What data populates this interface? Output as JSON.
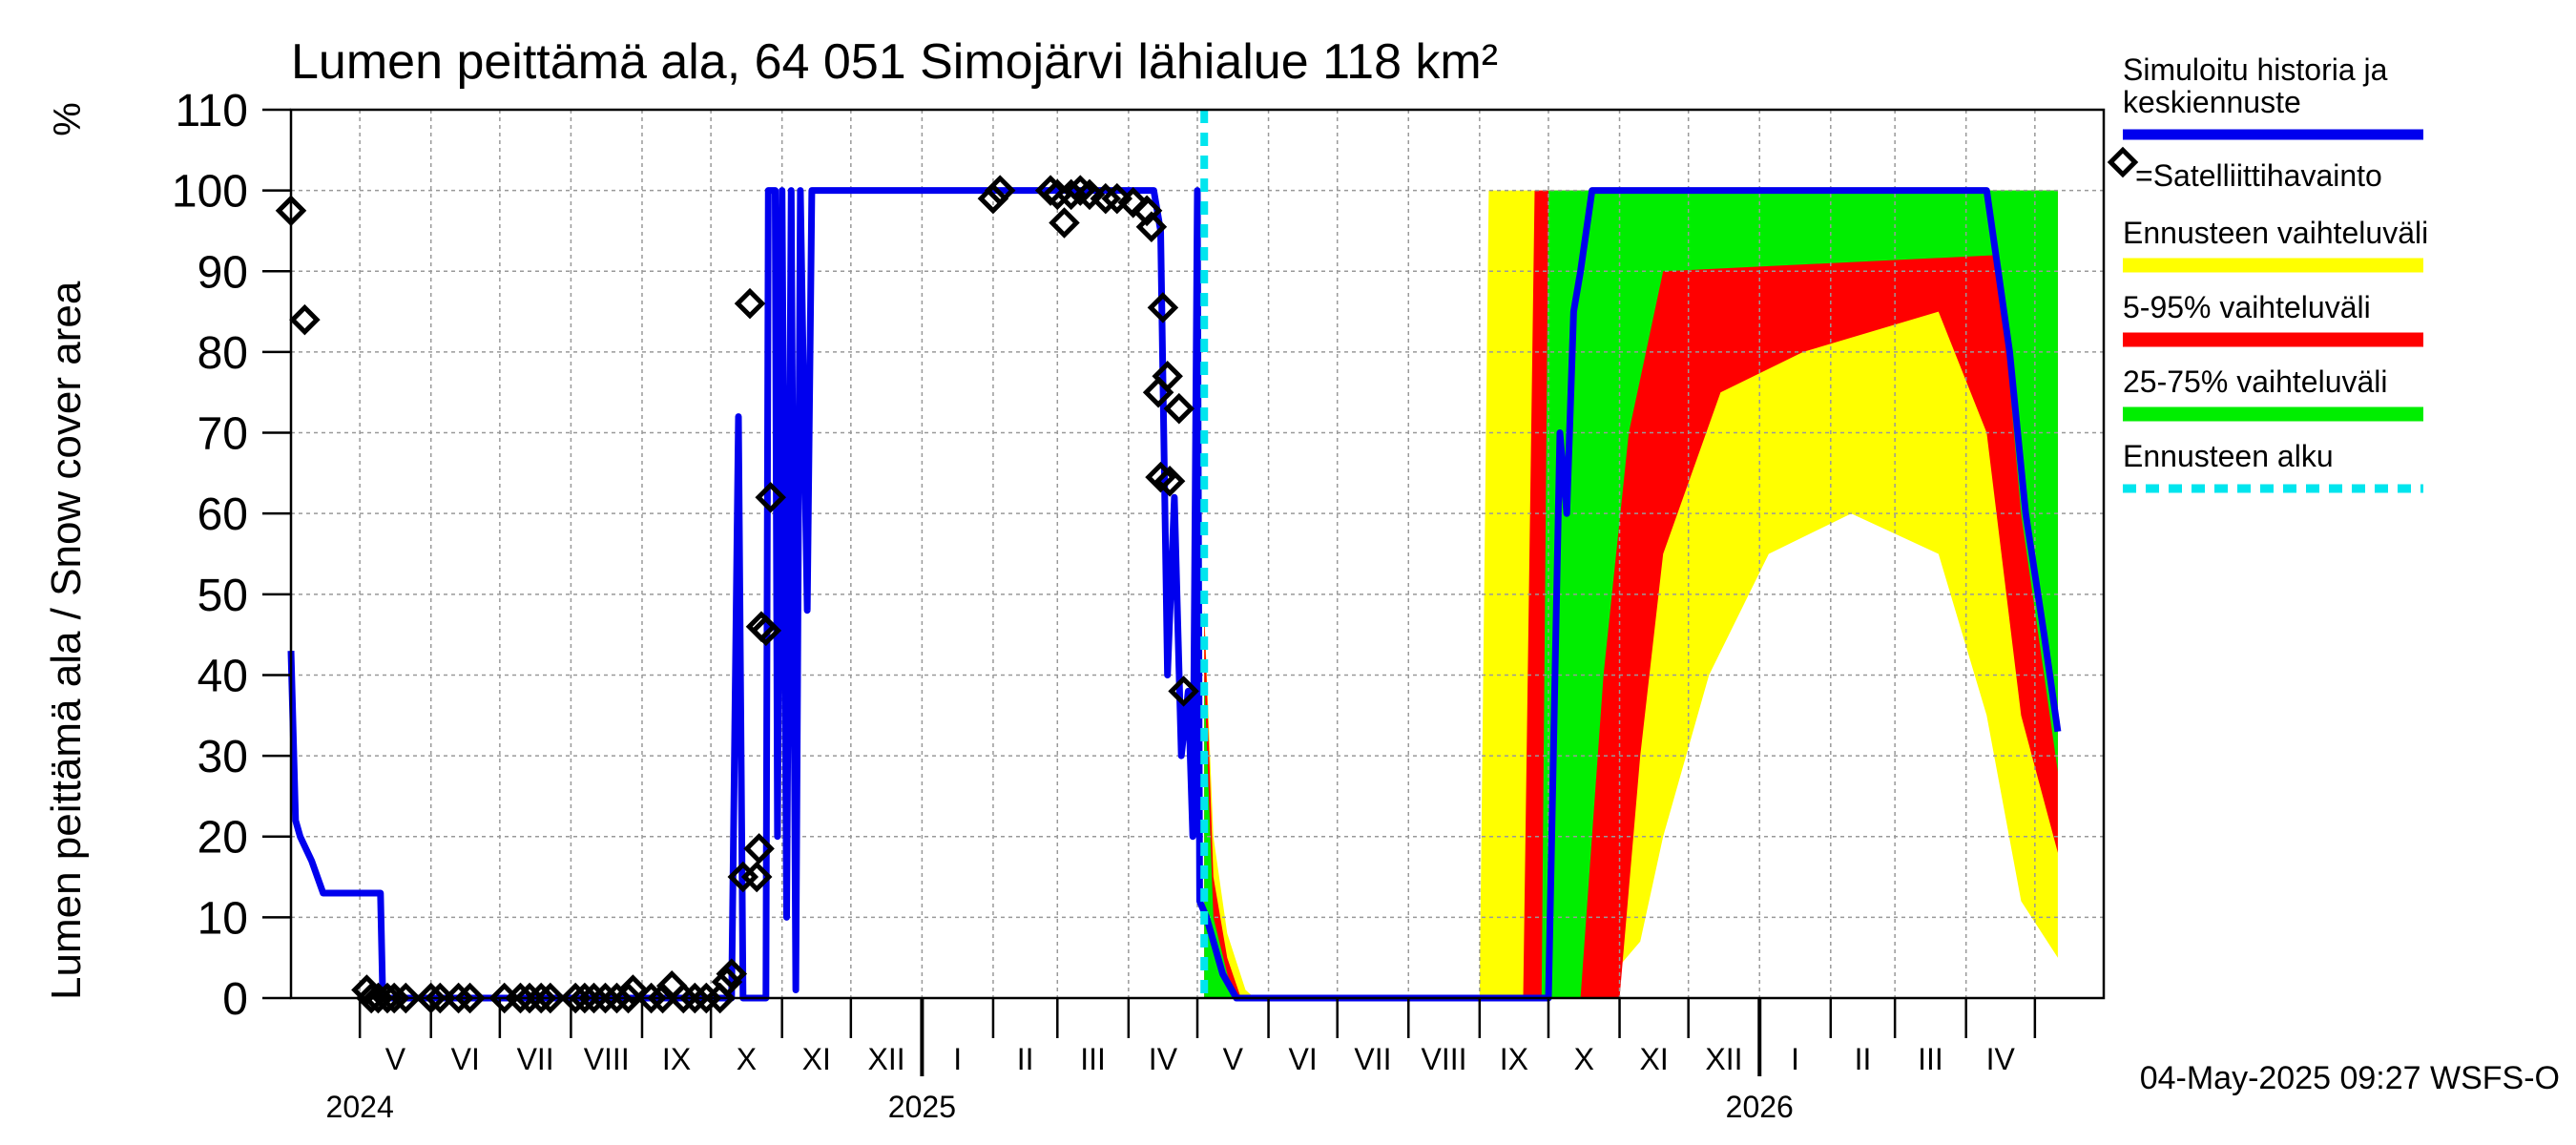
{
  "chart_data": {
    "type": "line",
    "title": "Lumen peittämä ala, 64 051 Simojärvi lähialue 118 km²",
    "ylabel": "Lumen peittämä ala / Snow cover area",
    "yunit": "%",
    "ylim": [
      0,
      110
    ],
    "yticks": [
      0,
      10,
      20,
      30,
      40,
      50,
      60,
      70,
      80,
      90,
      100,
      110
    ],
    "xlim": [
      "2024-04-01",
      "2026-05-31"
    ],
    "forecast_start": "2025-05-04",
    "month_labels": [
      {
        "date": "2024-05-01",
        "label": "V"
      },
      {
        "date": "2024-06-01",
        "label": "VI"
      },
      {
        "date": "2024-07-01",
        "label": "VII"
      },
      {
        "date": "2024-08-01",
        "label": "VIII"
      },
      {
        "date": "2024-09-01",
        "label": "IX"
      },
      {
        "date": "2024-10-01",
        "label": "X"
      },
      {
        "date": "2024-11-01",
        "label": "XI"
      },
      {
        "date": "2024-12-01",
        "label": "XII"
      },
      {
        "date": "2025-01-01",
        "label": "I"
      },
      {
        "date": "2025-02-01",
        "label": "II"
      },
      {
        "date": "2025-03-01",
        "label": "III"
      },
      {
        "date": "2025-04-01",
        "label": "IV"
      },
      {
        "date": "2025-05-01",
        "label": "V"
      },
      {
        "date": "2025-06-01",
        "label": "VI"
      },
      {
        "date": "2025-07-01",
        "label": "VII"
      },
      {
        "date": "2025-08-01",
        "label": "VIII"
      },
      {
        "date": "2025-09-01",
        "label": "IX"
      },
      {
        "date": "2025-10-01",
        "label": "X"
      },
      {
        "date": "2025-11-01",
        "label": "XI"
      },
      {
        "date": "2025-12-01",
        "label": "XII"
      },
      {
        "date": "2026-01-01",
        "label": "I"
      },
      {
        "date": "2026-02-01",
        "label": "II"
      },
      {
        "date": "2026-03-01",
        "label": "III"
      },
      {
        "date": "2026-04-01",
        "label": "IV"
      }
    ],
    "year_labels": [
      {
        "date": "2024-05-01",
        "label": "2024"
      },
      {
        "date": "2025-01-01",
        "label": "2025"
      },
      {
        "date": "2026-01-01",
        "label": "2026"
      }
    ],
    "legend": {
      "simulated": "Simuloitu historia ja keskiennuste",
      "satellite": "=Satelliittihavainto",
      "range_full": "Ennusteen vaihteluväli",
      "range_5_95": "5-95% vaihteluväli",
      "range_25_75": "25-75% vaihteluväli",
      "forecast_start": "Ennusteen alku"
    },
    "colors": {
      "simulated": "#0000ee",
      "range_full": "#ffff00",
      "range_5_95": "#ff0000",
      "range_25_75": "#00ee00",
      "forecast_start": "#00e5ee",
      "satellite": "#000000"
    },
    "series_simulated": [
      [
        "2024-04-01",
        43
      ],
      [
        "2024-04-03",
        22
      ],
      [
        "2024-04-05",
        20
      ],
      [
        "2024-04-10",
        17
      ],
      [
        "2024-04-15",
        13
      ],
      [
        "2024-05-10",
        13
      ],
      [
        "2024-05-11",
        0
      ],
      [
        "2024-10-10",
        0
      ],
      [
        "2024-10-13",
        72
      ],
      [
        "2024-10-15",
        0
      ],
      [
        "2024-10-25",
        0
      ],
      [
        "2024-10-26",
        100
      ],
      [
        "2024-10-29",
        100
      ],
      [
        "2024-10-30",
        20
      ],
      [
        "2024-11-01",
        100
      ],
      [
        "2024-11-03",
        10
      ],
      [
        "2024-11-05",
        100
      ],
      [
        "2024-11-07",
        1
      ],
      [
        "2024-11-09",
        100
      ],
      [
        "2024-11-12",
        48
      ],
      [
        "2024-11-14",
        100
      ],
      [
        "2025-04-12",
        100
      ],
      [
        "2025-04-15",
        95
      ],
      [
        "2025-04-18",
        40
      ],
      [
        "2025-04-21",
        62
      ],
      [
        "2025-04-24",
        30
      ],
      [
        "2025-04-27",
        38
      ],
      [
        "2025-04-29",
        20
      ],
      [
        "2025-05-01",
        100
      ],
      [
        "2025-05-02",
        12
      ],
      [
        "2025-05-05",
        10
      ],
      [
        "2025-05-12",
        3
      ],
      [
        "2025-05-18",
        0
      ],
      [
        "2025-10-01",
        0
      ],
      [
        "2025-10-06",
        70
      ],
      [
        "2025-10-09",
        60
      ],
      [
        "2025-10-12",
        85
      ],
      [
        "2025-10-15",
        90
      ],
      [
        "2025-10-20",
        100
      ],
      [
        "2026-04-10",
        100
      ],
      [
        "2026-04-15",
        90
      ],
      [
        "2026-04-20",
        80
      ],
      [
        "2026-04-27",
        60
      ],
      [
        "2026-05-05",
        45
      ],
      [
        "2026-05-11",
        33
      ]
    ],
    "satellite_obs": [
      [
        "2024-04-01",
        97.5
      ],
      [
        "2024-04-07",
        84
      ],
      [
        "2024-05-04",
        1
      ],
      [
        "2024-05-06",
        0
      ],
      [
        "2024-05-09",
        0
      ],
      [
        "2024-05-13",
        0
      ],
      [
        "2024-05-16",
        0
      ],
      [
        "2024-05-21",
        0
      ],
      [
        "2024-06-01",
        0
      ],
      [
        "2024-06-05",
        0
      ],
      [
        "2024-06-13",
        0
      ],
      [
        "2024-06-18",
        0
      ],
      [
        "2024-07-03",
        0
      ],
      [
        "2024-07-10",
        0
      ],
      [
        "2024-07-14",
        0
      ],
      [
        "2024-07-19",
        0
      ],
      [
        "2024-07-23",
        0
      ],
      [
        "2024-08-03",
        0
      ],
      [
        "2024-08-07",
        0
      ],
      [
        "2024-08-11",
        0
      ],
      [
        "2024-08-16",
        0
      ],
      [
        "2024-08-21",
        0
      ],
      [
        "2024-08-26",
        0
      ],
      [
        "2024-08-28",
        1
      ],
      [
        "2024-09-05",
        0
      ],
      [
        "2024-09-10",
        0
      ],
      [
        "2024-09-14",
        1.5
      ],
      [
        "2024-09-19",
        0
      ],
      [
        "2024-09-24",
        0
      ],
      [
        "2024-09-29",
        0
      ],
      [
        "2024-10-05",
        0
      ],
      [
        "2024-10-08",
        2
      ],
      [
        "2024-10-10",
        3
      ],
      [
        "2024-10-15",
        15
      ],
      [
        "2024-10-18",
        86
      ],
      [
        "2024-10-21",
        15
      ],
      [
        "2024-10-22",
        18.5
      ],
      [
        "2024-10-23",
        46
      ],
      [
        "2024-10-25",
        45.5
      ],
      [
        "2024-10-27",
        62
      ],
      [
        "2025-02-01",
        99
      ],
      [
        "2025-02-04",
        100
      ],
      [
        "2025-02-26",
        100
      ],
      [
        "2025-03-01",
        99.5
      ],
      [
        "2025-03-04",
        96
      ],
      [
        "2025-03-07",
        99.5
      ],
      [
        "2025-03-11",
        100
      ],
      [
        "2025-03-15",
        99.5
      ],
      [
        "2025-03-22",
        99
      ],
      [
        "2025-03-27",
        99
      ],
      [
        "2025-04-03",
        98.5
      ],
      [
        "2025-04-09",
        97.5
      ],
      [
        "2025-04-11",
        95.5
      ],
      [
        "2025-04-14",
        75
      ],
      [
        "2025-04-15",
        64.5
      ],
      [
        "2025-04-16",
        85.5
      ],
      [
        "2025-04-18",
        77
      ],
      [
        "2025-04-19",
        64
      ],
      [
        "2025-04-23",
        73
      ],
      [
        "2025-04-25",
        38
      ]
    ],
    "band_full": [
      [
        "2025-05-04",
        0,
        48
      ],
      [
        "2025-05-08",
        0,
        20
      ],
      [
        "2025-05-14",
        0,
        8
      ],
      [
        "2025-05-22",
        0,
        1
      ],
      [
        "2025-05-26",
        0,
        0
      ],
      [
        "2025-09-01",
        0,
        0
      ],
      [
        "2025-09-05",
        0,
        100
      ],
      [
        "2025-10-30",
        0,
        100
      ],
      [
        "2025-11-01",
        4,
        100
      ],
      [
        "2025-11-10",
        7,
        100
      ],
      [
        "2025-11-20",
        20,
        100
      ],
      [
        "2025-12-10",
        40,
        100
      ],
      [
        "2026-01-05",
        55,
        100
      ],
      [
        "2026-02-10",
        60,
        100
      ],
      [
        "2026-03-20",
        55,
        100
      ],
      [
        "2026-04-10",
        35,
        100
      ],
      [
        "2026-04-25",
        12,
        100
      ],
      [
        "2026-05-11",
        5,
        100
      ]
    ],
    "band_5_95": [
      [
        "2025-05-04",
        0,
        48
      ],
      [
        "2025-05-08",
        0,
        15
      ],
      [
        "2025-05-14",
        0,
        5
      ],
      [
        "2025-05-20",
        0,
        0
      ],
      [
        "2025-09-20",
        0,
        0
      ],
      [
        "2025-09-25",
        0,
        100
      ],
      [
        "2025-11-01",
        0,
        100
      ],
      [
        "2025-11-10",
        30,
        100
      ],
      [
        "2025-11-20",
        55,
        100
      ],
      [
        "2025-12-15",
        75,
        100
      ],
      [
        "2026-01-20",
        80,
        100
      ],
      [
        "2026-03-20",
        85,
        100
      ],
      [
        "2026-04-10",
        70,
        100
      ],
      [
        "2026-04-25",
        35,
        100
      ],
      [
        "2026-05-11",
        18,
        100
      ]
    ],
    "band_25_75": [
      [
        "2025-05-04",
        0,
        40
      ],
      [
        "2025-05-08",
        0,
        10
      ],
      [
        "2025-05-14",
        0,
        3
      ],
      [
        "2025-05-18",
        0,
        0
      ],
      [
        "2025-09-28",
        0,
        0
      ],
      [
        "2025-10-01",
        0,
        100
      ],
      [
        "2025-10-15",
        0,
        100
      ],
      [
        "2025-10-25",
        40,
        100
      ],
      [
        "2025-11-05",
        70,
        100
      ],
      [
        "2025-11-20",
        90,
        100
      ],
      [
        "2026-04-15",
        92,
        100
      ],
      [
        "2026-04-25",
        60,
        100
      ],
      [
        "2026-05-05",
        40,
        100
      ],
      [
        "2026-05-11",
        28,
        100
      ]
    ]
  },
  "footer": {
    "timestamp": "04-May-2025 09:27 WSFS-O"
  }
}
